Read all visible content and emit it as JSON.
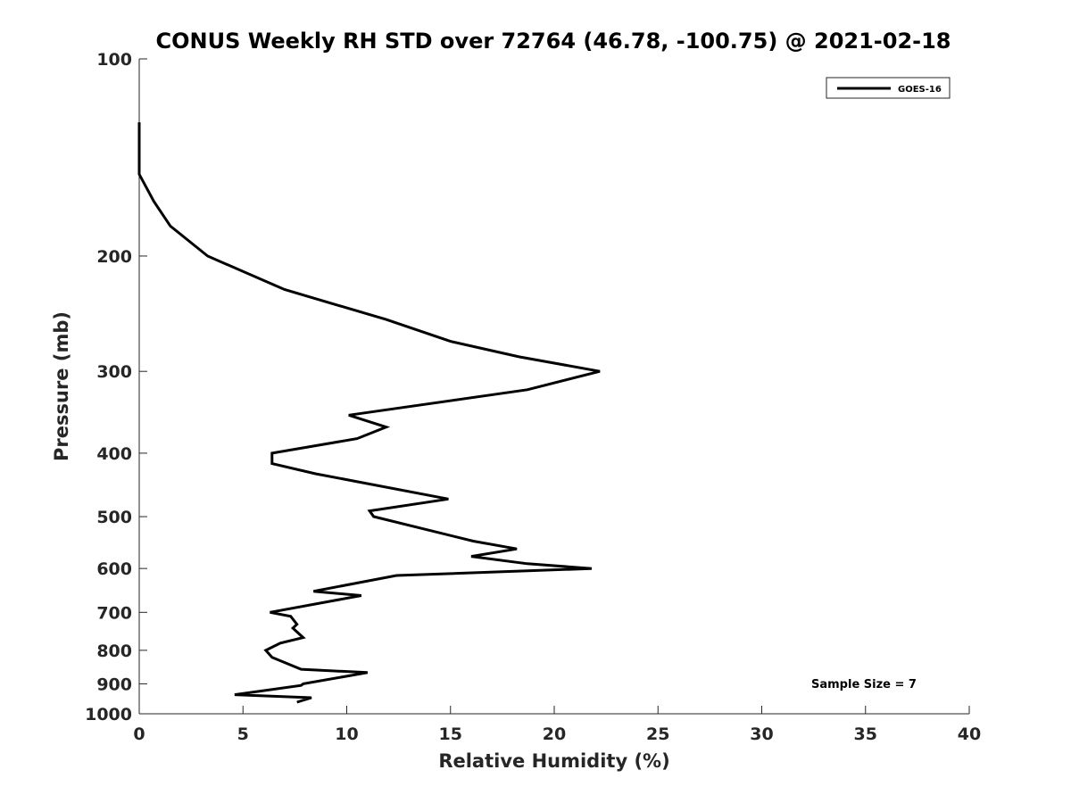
{
  "chart_data": {
    "type": "line",
    "title": "CONUS Weekly RH STD over 72764 (46.78, -100.75) @ 2021-02-18",
    "xlabel": "Relative Humidity (%)",
    "ylabel": "Pressure (mb)",
    "xlim": [
      0,
      40
    ],
    "ylim": [
      100,
      1000
    ],
    "yscale": "log",
    "y_reversed": true,
    "x_ticks": [
      0,
      5,
      10,
      15,
      20,
      25,
      30,
      35,
      40
    ],
    "y_ticks": [
      100,
      200,
      300,
      400,
      500,
      600,
      700,
      800,
      900,
      1000
    ],
    "grid": false,
    "legend_position": "top-right",
    "line_color": "#000000",
    "annotation": "Sample Size = 7",
    "series": [
      {
        "name": "GOES-16",
        "points": [
          [
            0.0,
            125
          ],
          [
            0.0,
            150
          ],
          [
            0.7,
            165
          ],
          [
            1.5,
            180
          ],
          [
            3.3,
            200
          ],
          [
            7.0,
            225
          ],
          [
            11.9,
            250
          ],
          [
            15.0,
            270
          ],
          [
            18.3,
            285
          ],
          [
            22.2,
            300
          ],
          [
            18.7,
            320
          ],
          [
            10.1,
            350
          ],
          [
            11.9,
            365
          ],
          [
            10.5,
            380
          ],
          [
            6.4,
            400
          ],
          [
            6.4,
            415
          ],
          [
            8.5,
            430
          ],
          [
            14.9,
            470
          ],
          [
            11.1,
            490
          ],
          [
            11.3,
            500
          ],
          [
            16.1,
            545
          ],
          [
            18.2,
            560
          ],
          [
            16.0,
            575
          ],
          [
            18.7,
            590
          ],
          [
            21.8,
            600
          ],
          [
            12.4,
            615
          ],
          [
            8.4,
            650
          ],
          [
            10.7,
            660
          ],
          [
            6.3,
            700
          ],
          [
            7.3,
            710
          ],
          [
            7.6,
            730
          ],
          [
            7.4,
            740
          ],
          [
            7.9,
            765
          ],
          [
            6.8,
            780
          ],
          [
            6.1,
            800
          ],
          [
            6.4,
            820
          ],
          [
            7.8,
            855
          ],
          [
            11.0,
            865
          ],
          [
            7.9,
            900
          ],
          [
            7.8,
            905
          ],
          [
            4.6,
            935
          ],
          [
            8.3,
            945
          ],
          [
            7.6,
            960
          ]
        ]
      }
    ]
  }
}
